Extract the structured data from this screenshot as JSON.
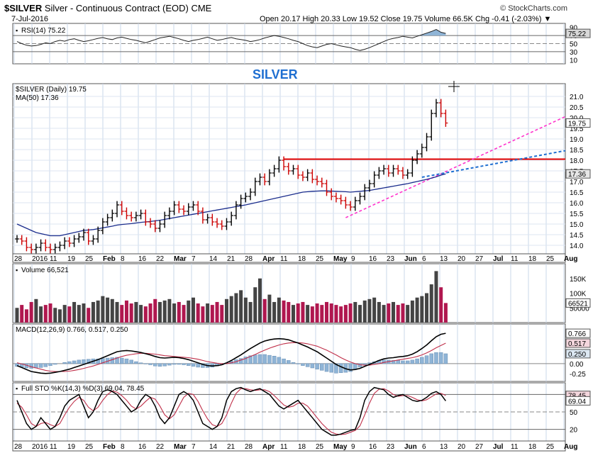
{
  "header": {
    "symbol": "$SILVER",
    "description": "Silver - Continuous Contract (EOD) CME",
    "date": "7-Jul-2016",
    "copyright": "© StockCharts.com",
    "ohlc_text": "Open 20.17  High 20.33  Low 19.52  Close 19.75  Volume 66.5K  Chg -0.41 (-2.03%) ▼"
  },
  "chart_data": [
    {
      "type": "line",
      "panel": "rsi",
      "title": "RSI(14) 75.22",
      "y_ticks": [
        "90",
        "70",
        "50",
        "30",
        "10"
      ],
      "last_value_label": "75.22",
      "ylim": [
        0,
        100
      ],
      "values": [
        55,
        50,
        46,
        44,
        45,
        48,
        52,
        50,
        55,
        58,
        56,
        60,
        62,
        58,
        55,
        57,
        60,
        63,
        65,
        62,
        60,
        64,
        66,
        63,
        60,
        58,
        55,
        52,
        56,
        60,
        64,
        66,
        68,
        65,
        62,
        58,
        55,
        58,
        60,
        63,
        66,
        62,
        58,
        60,
        63,
        65,
        62,
        60,
        58,
        55,
        57,
        60,
        64,
        67,
        70,
        68,
        65,
        62,
        58,
        55,
        50,
        45,
        42,
        40,
        44,
        48,
        50,
        47,
        44,
        42,
        40,
        36,
        33,
        36,
        40,
        45,
        50,
        55,
        60,
        63,
        65,
        68,
        66,
        64,
        68,
        72,
        76,
        80,
        85,
        78,
        75.22
      ]
    },
    {
      "type": "bar",
      "panel": "price",
      "title": "$SILVER (Daily) 19.75",
      "annotation": "SILVER",
      "legend": [
        "$SILVER (Daily) 19.75",
        "MA(50) 17.36"
      ],
      "y_ticks": [
        "21.0",
        "20.5",
        "20.0",
        "19.5",
        "19.0",
        "18.5",
        "18.0",
        "17.5",
        "17.0",
        "16.5",
        "16.0",
        "15.5",
        "15.0",
        "14.5",
        "14.0"
      ],
      "ylim": [
        13.6,
        21.6
      ],
      "last_close_label": "19.75",
      "ma_label": "17.36",
      "close": [
        14.3,
        14.2,
        13.9,
        13.8,
        13.9,
        14.1,
        13.9,
        13.8,
        13.9,
        14.0,
        14.2,
        14.1,
        14.3,
        14.4,
        14.6,
        14.2,
        14.3,
        14.7,
        15.1,
        15.3,
        15.5,
        15.9,
        15.6,
        15.4,
        15.3,
        15.4,
        15.5,
        15.1,
        15.0,
        14.8,
        15.0,
        15.4,
        15.6,
        15.9,
        15.7,
        15.6,
        15.8,
        15.9,
        15.6,
        15.2,
        15.3,
        15.1,
        15.0,
        14.9,
        15.1,
        15.4,
        15.9,
        16.2,
        16.3,
        16.5,
        17.0,
        17.2,
        17.0,
        17.4,
        17.6,
        18.0,
        17.7,
        17.5,
        17.6,
        17.3,
        17.2,
        17.4,
        17.1,
        17.0,
        16.9,
        16.5,
        16.3,
        16.2,
        16.1,
        15.9,
        15.8,
        16.1,
        16.3,
        16.7,
        16.9,
        17.3,
        17.5,
        17.6,
        17.4,
        17.6,
        17.5,
        17.3,
        17.4,
        18.0,
        18.3,
        18.6,
        19.1,
        20.2,
        20.7,
        20.2,
        19.75
      ],
      "ma50": [
        15.0,
        14.9,
        14.8,
        14.7,
        14.6,
        14.55,
        14.5,
        14.45,
        14.45,
        14.45,
        14.5,
        14.55,
        14.6,
        14.65,
        14.7,
        14.72,
        14.74,
        14.78,
        14.82,
        14.86,
        14.9,
        14.95,
        14.98,
        15.0,
        15.02,
        15.05,
        15.08,
        15.1,
        15.12,
        15.15,
        15.18,
        15.22,
        15.26,
        15.3,
        15.34,
        15.38,
        15.42,
        15.46,
        15.5,
        15.54,
        15.58,
        15.62,
        15.66,
        15.7,
        15.74,
        15.78,
        15.82,
        15.86,
        15.9,
        15.95,
        16.0,
        16.05,
        16.1,
        16.15,
        16.2,
        16.25,
        16.3,
        16.35,
        16.4,
        16.45,
        16.5,
        16.52,
        16.54,
        16.55,
        16.56,
        16.56,
        16.55,
        16.54,
        16.53,
        16.52,
        16.5,
        16.52,
        16.54,
        16.56,
        16.58,
        16.62,
        16.66,
        16.7,
        16.74,
        16.78,
        16.82,
        16.86,
        16.9,
        16.95,
        17.0,
        17.05,
        17.1,
        17.16,
        17.22,
        17.3,
        17.36
      ],
      "horizontal_line": 18.05,
      "x_labels": [
        "28",
        "2016",
        "11",
        "19",
        "25",
        "Feb",
        "8",
        "16",
        "22",
        "Mar",
        "7",
        "14",
        "21",
        "28",
        "Apr",
        "11",
        "18",
        "25",
        "May",
        "9",
        "16",
        "23",
        "Jun",
        "6",
        "13",
        "20",
        "27",
        "Jul",
        "11",
        "18",
        "25",
        "Aug"
      ]
    },
    {
      "type": "bar",
      "panel": "volume",
      "title": "Volume 66,521",
      "y_ticks": [
        "150K",
        "100K",
        "50000"
      ],
      "ylim": [
        0,
        200000
      ],
      "last_value_label": "66521",
      "values": [
        50000,
        60000,
        45000,
        70000,
        80000,
        55000,
        60000,
        65000,
        50000,
        45000,
        60000,
        55000,
        70000,
        60000,
        65000,
        50000,
        70000,
        75000,
        90000,
        85000,
        80000,
        70000,
        60000,
        75000,
        65000,
        70000,
        60000,
        55000,
        65000,
        80000,
        70000,
        75000,
        80000,
        65000,
        70000,
        60000,
        75000,
        85000,
        65000,
        55000,
        65000,
        60000,
        70000,
        60000,
        80000,
        90000,
        100000,
        110000,
        85000,
        70000,
        120000,
        150000,
        80000,
        95000,
        70000,
        85000,
        75000,
        70000,
        60000,
        65000,
        70000,
        60000,
        55000,
        65000,
        60000,
        70000,
        65000,
        60000,
        55000,
        60000,
        65000,
        70000,
        60000,
        75000,
        80000,
        85000,
        70000,
        60000,
        65000,
        70000,
        60000,
        65000,
        60000,
        75000,
        85000,
        90000,
        100000,
        130000,
        175000,
        120000,
        66521
      ]
    },
    {
      "type": "line",
      "panel": "macd",
      "title": "MACD(12,26,9) 0.766, 0.517, 0.250",
      "y_ticks": [
        "0.25",
        "0.00",
        "-0.25"
      ],
      "ylim": [
        -0.45,
        1.0
      ],
      "labels": [
        "0.766",
        "0.517",
        "0.250"
      ],
      "macd": [
        -0.05,
        -0.1,
        -0.15,
        -0.2,
        -0.22,
        -0.24,
        -0.25,
        -0.24,
        -0.22,
        -0.2,
        -0.17,
        -0.14,
        -0.1,
        -0.06,
        -0.02,
        0.02,
        0.06,
        0.1,
        0.15,
        0.2,
        0.25,
        0.3,
        0.32,
        0.33,
        0.32,
        0.3,
        0.28,
        0.25,
        0.22,
        0.18,
        0.15,
        0.14,
        0.15,
        0.16,
        0.15,
        0.13,
        0.1,
        0.06,
        0.02,
        -0.02,
        -0.05,
        -0.06,
        -0.05,
        -0.03,
        0.02,
        0.08,
        0.15,
        0.22,
        0.3,
        0.38,
        0.45,
        0.52,
        0.57,
        0.6,
        0.62,
        0.63,
        0.62,
        0.6,
        0.56,
        0.52,
        0.47,
        0.42,
        0.36,
        0.3,
        0.22,
        0.14,
        0.06,
        -0.02,
        -0.08,
        -0.13,
        -0.16,
        -0.15,
        -0.12,
        -0.07,
        -0.02,
        0.03,
        0.08,
        0.12,
        0.14,
        0.15,
        0.17,
        0.18,
        0.2,
        0.24,
        0.3,
        0.38,
        0.47,
        0.58,
        0.68,
        0.74,
        0.766
      ],
      "signal": [
        0.02,
        -0.01,
        -0.04,
        -0.08,
        -0.11,
        -0.14,
        -0.17,
        -0.19,
        -0.2,
        -0.2,
        -0.2,
        -0.19,
        -0.17,
        -0.15,
        -0.12,
        -0.09,
        -0.06,
        -0.02,
        0.02,
        0.06,
        0.1,
        0.14,
        0.18,
        0.21,
        0.23,
        0.25,
        0.26,
        0.26,
        0.25,
        0.24,
        0.22,
        0.2,
        0.19,
        0.18,
        0.17,
        0.16,
        0.15,
        0.13,
        0.11,
        0.08,
        0.05,
        0.03,
        0.01,
        0.0,
        0.0,
        0.02,
        0.05,
        0.09,
        0.13,
        0.18,
        0.23,
        0.29,
        0.34,
        0.39,
        0.43,
        0.47,
        0.5,
        0.52,
        0.53,
        0.53,
        0.52,
        0.5,
        0.47,
        0.44,
        0.39,
        0.34,
        0.28,
        0.22,
        0.15,
        0.09,
        0.04,
        0.0,
        -0.03,
        -0.04,
        -0.04,
        -0.02,
        0.0,
        0.03,
        0.05,
        0.07,
        0.09,
        0.11,
        0.13,
        0.15,
        0.18,
        0.22,
        0.27,
        0.33,
        0.4,
        0.46,
        0.517
      ],
      "histogram_last": 0.25
    },
    {
      "type": "line",
      "panel": "stochastic",
      "title": "Full STO %K(14,3) %D(3) 69.04, 78.45",
      "y_ticks": [
        "80",
        "50",
        "20"
      ],
      "ylim": [
        0,
        100
      ],
      "labels": [
        "78.45",
        "69.04"
      ],
      "k": [
        70,
        50,
        30,
        20,
        25,
        40,
        30,
        20,
        25,
        40,
        60,
        70,
        75,
        80,
        60,
        40,
        50,
        70,
        85,
        88,
        85,
        80,
        70,
        60,
        50,
        55,
        70,
        80,
        75,
        60,
        40,
        30,
        40,
        60,
        80,
        85,
        80,
        70,
        50,
        30,
        25,
        20,
        25,
        40,
        70,
        85,
        90,
        92,
        88,
        85,
        88,
        90,
        85,
        80,
        70,
        60,
        55,
        60,
        65,
        70,
        60,
        50,
        40,
        30,
        20,
        15,
        10,
        10,
        12,
        15,
        18,
        20,
        40,
        70,
        85,
        92,
        90,
        88,
        80,
        75,
        78,
        80,
        75,
        70,
        68,
        70,
        75,
        82,
        85,
        80,
        69.04
      ],
      "d": [
        65,
        58,
        45,
        30,
        25,
        30,
        32,
        28,
        25,
        30,
        45,
        58,
        68,
        75,
        70,
        58,
        52,
        58,
        70,
        80,
        86,
        84,
        78,
        70,
        60,
        55,
        60,
        68,
        75,
        72,
        60,
        45,
        38,
        45,
        60,
        75,
        82,
        80,
        68,
        52,
        38,
        28,
        25,
        30,
        45,
        65,
        82,
        90,
        90,
        88,
        87,
        88,
        88,
        85,
        78,
        70,
        62,
        58,
        60,
        65,
        65,
        60,
        50,
        40,
        30,
        22,
        15,
        12,
        11,
        12,
        15,
        18,
        26,
        45,
        65,
        82,
        89,
        90,
        86,
        80,
        77,
        78,
        78,
        75,
        71,
        69,
        71,
        76,
        81,
        82,
        78.45
      ]
    }
  ]
}
